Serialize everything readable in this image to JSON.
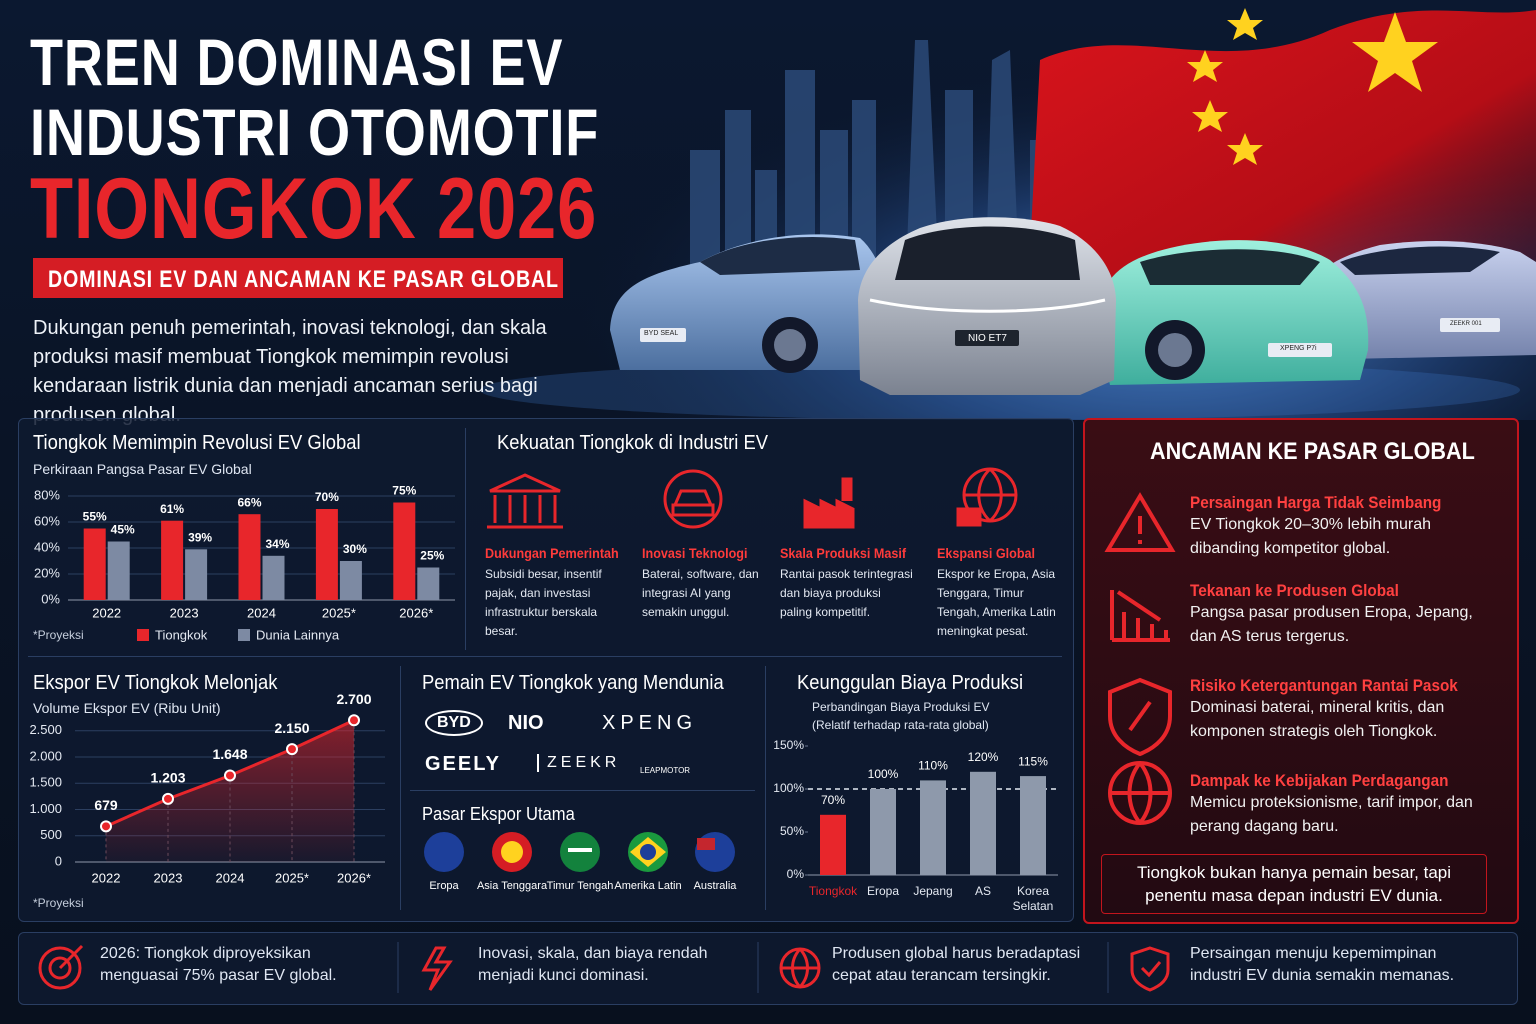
{
  "header": {
    "title_line1": "TREN DOMINASI EV",
    "title_line2": "INDUSTRI OTOMOTIF",
    "title_line3": "TIONGKOK 2026",
    "subtitle": "DOMINASI EV DAN ANCAMAN KE PASAR GLOBAL",
    "intro": "Dukungan penuh pemerintah, inovasi teknologi, dan skala produksi masif membuat Tiongkok memimpin revolusi kendaraan listrik dunia dan menjadi ancaman serius bagi produsen global."
  },
  "hero": {
    "car_labels": [
      "BYD SEAL",
      "NIO ET7",
      "XPENG P7i",
      "ZEEKR 001"
    ]
  },
  "chart_data": [
    {
      "type": "bar",
      "title": "Tiongkok Memimpin Revolusi EV Global",
      "subtitle": "Perkiraan Pangsa Pasar EV Global",
      "note": "*Proyeksi",
      "categories": [
        "2022",
        "2023",
        "2024",
        "2025*",
        "2026*"
      ],
      "series": [
        {
          "name": "Tiongkok",
          "color": "#e8262b",
          "values": [
            55,
            61,
            66,
            70,
            75
          ],
          "value_labels": [
            "55%",
            "61%",
            "66%",
            "70%",
            "75%"
          ]
        },
        {
          "name": "Dunia Lainnya",
          "color": "#7d8aa3",
          "values": [
            45,
            39,
            34,
            30,
            25
          ],
          "value_labels": [
            "45%",
            "39%",
            "34%",
            "30%",
            "25%"
          ]
        }
      ],
      "ylim": [
        0,
        80
      ],
      "yticks": [
        {
          "value": 0,
          "label": "0%"
        },
        {
          "value": 20,
          "label": "20%"
        },
        {
          "value": 40,
          "label": "40%"
        },
        {
          "value": 60,
          "label": "60%"
        },
        {
          "value": 80,
          "label": "80%"
        }
      ],
      "grid": true
    },
    {
      "type": "line",
      "title": "Ekspor EV Tiongkok Melonjak",
      "subtitle": "Volume Ekspor EV (Ribu Unit)",
      "note": "*Proyeksi",
      "categories": [
        "2022",
        "2023",
        "2024",
        "2025*",
        "2026*"
      ],
      "values": [
        679,
        1203,
        1648,
        2150,
        2700
      ],
      "value_labels": [
        "679",
        "1.203",
        "1.648",
        "2.150",
        "2.700"
      ],
      "color": "#e8262b",
      "ylim": [
        0,
        2800
      ],
      "yticks": [
        0,
        500,
        {
          "value": 1000,
          "label": "1.000"
        },
        {
          "value": 1500,
          "label": "1.500"
        },
        {
          "value": 2000,
          "label": "2.000"
        },
        {
          "value": 2500,
          "label": "2.500"
        }
      ],
      "grid": true
    },
    {
      "type": "bar",
      "title": "Keunggulan Biaya Produksi",
      "subtitle": "Perbandingan Biaya Produksi EV",
      "subtitle2": "(Relatif terhadap rata-rata global)",
      "categories": [
        "Tiongkok",
        "Eropa",
        "Jepang",
        "AS",
        "Korea Selatan"
      ],
      "values": [
        70,
        100,
        110,
        120,
        115
      ],
      "value_labels": [
        "70%",
        "100%",
        "110%",
        "120%",
        "115%"
      ],
      "colors": [
        "#e8262b",
        "#8e99ab",
        "#8e99ab",
        "#8e99ab",
        "#8e99ab"
      ],
      "ylim": [
        0,
        150
      ],
      "yticks": [
        {
          "value": 0,
          "label": "0%"
        },
        {
          "value": 50,
          "label": "50%"
        },
        {
          "value": 100,
          "label": "100%"
        },
        {
          "value": 150,
          "label": "150%"
        }
      ],
      "reference_line": 100,
      "grid": false
    }
  ],
  "strengths": {
    "title": "Kekuatan Tiongkok di Industri EV",
    "items": [
      {
        "title": "Dukungan Pemerintah",
        "text": "Subsidi besar, insentif pajak, dan investasi infrastruktur berskala besar."
      },
      {
        "title": "Inovasi Teknologi",
        "text": "Baterai, software, dan integrasi AI yang semakin unggul."
      },
      {
        "title": "Skala Produksi Masif",
        "text": "Rantai pasok terintegrasi dan biaya produksi paling kompetitif."
      },
      {
        "title": "Ekspansi Global",
        "text": "Ekspor ke Eropa, Asia Tenggara, Timur Tengah, Amerika Latin meningkat pesat."
      }
    ]
  },
  "players": {
    "title": "Pemain EV Tiongkok yang Mendunia",
    "brands": [
      "BYD",
      "NIO",
      "XPENG",
      "GEELY",
      "ZEEKR",
      "LEAPMOTOR"
    ]
  },
  "markets": {
    "title": "Pasar Ekspor Utama",
    "items": [
      "Eropa",
      "Asia Tenggara",
      "Timur Tengah",
      "Amerika Latin",
      "Australia"
    ]
  },
  "threats": {
    "title": "ANCAMAN KE PASAR GLOBAL",
    "items": [
      {
        "title": "Persaingan Harga Tidak Seimbang",
        "text": "EV Tiongkok 20–30% lebih murah dibanding kompetitor global."
      },
      {
        "title": "Tekanan ke Produsen Global",
        "text": "Pangsa pasar produsen Eropa, Jepang, dan AS terus tergerus."
      },
      {
        "title": "Risiko Ketergantungan Rantai Pasok",
        "text": "Dominasi baterai, mineral kritis, dan komponen strategis oleh Tiongkok."
      },
      {
        "title": "Dampak ke Kebijakan Perdagangan",
        "text": "Memicu proteksionisme, tarif impor, dan perang dagang baru."
      }
    ],
    "quote": "Tiongkok bukan hanya pemain besar, tapi penentu masa depan industri EV dunia."
  },
  "footer": {
    "items": [
      "2026: Tiongkok diproyeksikan menguasai 75% pasar EV global.",
      "Inovasi, skala, dan biaya rendah menjadi kunci dominasi.",
      "Produsen global harus beradaptasi cepat atau terancam tersingkir.",
      "Persaingan menuju kepemimpinan industri EV dunia semakin memanas."
    ]
  }
}
